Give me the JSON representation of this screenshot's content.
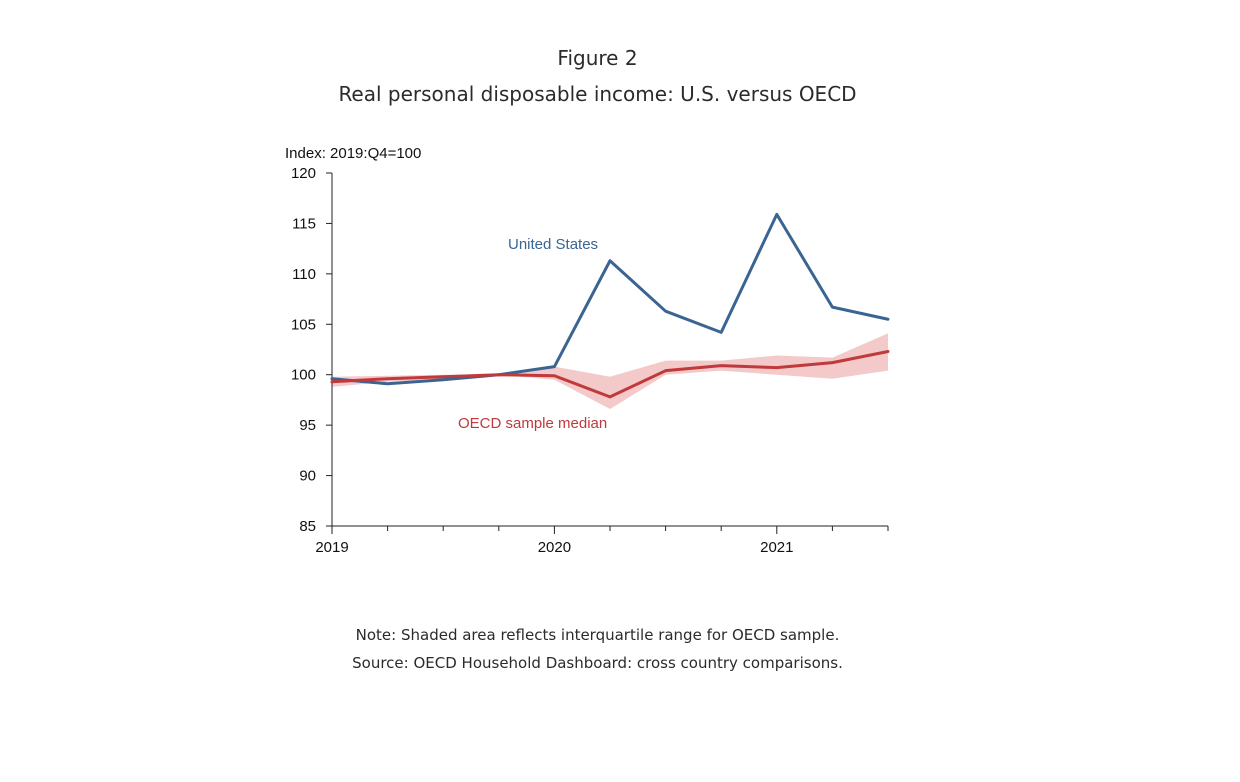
{
  "figure_label": "Figure 2",
  "title": "Real personal disposable income: U.S. versus OECD",
  "note": "Note: Shaded area reflects interquartile range for OECD sample.",
  "source": "Source: OECD Household Dashboard: cross country comparisons.",
  "chart_data": {
    "type": "line",
    "ylabel": "Index: 2019:Q4=100",
    "ylim": [
      85,
      120
    ],
    "yticks": [
      85,
      90,
      95,
      100,
      105,
      110,
      115,
      120
    ],
    "x_start": 2019,
    "x_end": 2021.5,
    "xtick_labels": [
      "2019",
      "2020",
      "2021"
    ],
    "x": [
      "2019:Q1",
      "2019:Q2",
      "2019:Q3",
      "2019:Q4",
      "2020:Q1",
      "2020:Q2",
      "2020:Q3",
      "2020:Q4",
      "2021:Q1",
      "2021:Q2",
      "2021:Q3"
    ],
    "grid": false,
    "series": [
      {
        "name": "United States",
        "color": "#3a6593",
        "values": [
          99.6,
          99.1,
          99.5,
          100.0,
          100.8,
          111.3,
          106.3,
          104.2,
          115.9,
          106.7,
          105.5
        ]
      },
      {
        "name": "OECD sample median",
        "color": "#c0393b",
        "values": [
          99.3,
          99.6,
          99.8,
          100.0,
          99.9,
          97.8,
          100.4,
          100.9,
          100.7,
          101.2,
          102.3
        ]
      }
    ],
    "band": {
      "color": "#f3c9c9",
      "upper": [
        99.8,
        99.9,
        100.0,
        100.0,
        100.8,
        99.8,
        101.4,
        101.4,
        101.9,
        101.7,
        104.1
      ],
      "lower": [
        98.8,
        99.3,
        99.5,
        100.0,
        99.5,
        96.6,
        100.0,
        100.4,
        100.0,
        99.6,
        100.4
      ]
    }
  }
}
